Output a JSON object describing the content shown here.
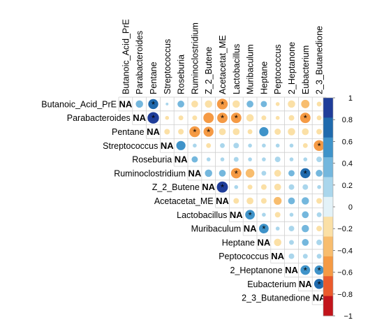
{
  "chart_data": {
    "type": "heatmap",
    "subtype": "correlation-matrix-upper-triangle-circles",
    "title": "",
    "xlabel": "",
    "ylabel": "",
    "variables": [
      "Butanoic_Acid_PrE",
      "Parabacteroides",
      "Pentane",
      "Streptococcus",
      "Roseburia",
      "Ruminoclostridium",
      "Z_2_Butene",
      "Acetacetat_ME",
      "Lactobacillus",
      "Muribaculum",
      "Heptane",
      "Peptococcus",
      "2_Heptanone",
      "Eubacterium",
      "2_3_Butanedione"
    ],
    "diagonal_label": "NA",
    "significance_marker": "*",
    "values": [
      [
        null,
        0.35,
        0.65,
        0.05,
        0.3,
        -0.3,
        -0.35,
        -0.75,
        -0.35,
        0.3,
        0.25,
        -0.1,
        -0.35,
        -0.45,
        -0.15
      ],
      [
        null,
        null,
        0.85,
        -0.1,
        -0.15,
        -0.15,
        -0.7,
        -0.7,
        -0.7,
        -0.35,
        -0.15,
        -0.1,
        -0.2,
        -0.7,
        -0.15
      ],
      [
        null,
        null,
        null,
        -0.2,
        -0.2,
        -0.75,
        -0.65,
        -0.3,
        -0.3,
        -0.15,
        0.55,
        -0.25,
        -0.35,
        -0.3,
        -0.2
      ],
      [
        null,
        null,
        null,
        null,
        0.55,
        0.1,
        -0.15,
        0.15,
        0.2,
        0.1,
        0.1,
        0.1,
        0.1,
        -0.15,
        -0.75
      ],
      [
        null,
        null,
        null,
        null,
        null,
        0.25,
        0.1,
        0.1,
        0.15,
        0.1,
        0.1,
        0.2,
        0.1,
        0.1,
        0.2
      ],
      [
        null,
        null,
        null,
        null,
        null,
        null,
        0.35,
        0.3,
        -0.7,
        -0.5,
        0.15,
        -0.3,
        0.25,
        0.65,
        0.3
      ],
      [
        null,
        null,
        null,
        null,
        null,
        null,
        null,
        0.8,
        0.1,
        -0.15,
        -0.2,
        -0.3,
        0.2,
        0.2,
        0.1
      ],
      [
        null,
        null,
        null,
        null,
        null,
        null,
        null,
        null,
        -0.2,
        -0.3,
        -0.2,
        -0.4,
        0.3,
        0.35,
        -0.2
      ],
      [
        null,
        null,
        null,
        null,
        null,
        null,
        null,
        null,
        null,
        0.6,
        0.1,
        -0.2,
        0.1,
        0.3,
        0.15
      ],
      [
        null,
        null,
        null,
        null,
        null,
        null,
        null,
        null,
        null,
        null,
        0.6,
        0.1,
        0.2,
        0.35,
        -0.2
      ],
      [
        null,
        null,
        null,
        null,
        null,
        null,
        null,
        null,
        null,
        null,
        null,
        -0.35,
        0.15,
        0.3,
        0.2
      ],
      [
        null,
        null,
        null,
        null,
        null,
        null,
        null,
        null,
        null,
        null,
        null,
        null,
        0.2,
        0.15,
        0.15
      ],
      [
        null,
        null,
        null,
        null,
        null,
        null,
        null,
        null,
        null,
        null,
        null,
        null,
        null,
        0.6,
        0.55
      ],
      [
        null,
        null,
        null,
        null,
        null,
        null,
        null,
        null,
        null,
        null,
        null,
        null,
        null,
        null,
        0.65
      ],
      [
        null,
        null,
        null,
        null,
        null,
        null,
        null,
        null,
        null,
        null,
        null,
        null,
        null,
        null,
        null
      ]
    ],
    "significant": [
      [
        0,
        2
      ],
      [
        0,
        7
      ],
      [
        1,
        2
      ],
      [
        1,
        7
      ],
      [
        1,
        8
      ],
      [
        1,
        13
      ],
      [
        2,
        5
      ],
      [
        2,
        6
      ],
      [
        3,
        14
      ],
      [
        5,
        8
      ],
      [
        5,
        13
      ],
      [
        6,
        7
      ],
      [
        8,
        9
      ],
      [
        9,
        10
      ],
      [
        12,
        13
      ],
      [
        12,
        14
      ],
      [
        13,
        14
      ]
    ],
    "colorbar": {
      "range": [
        -1,
        1
      ],
      "tick_labels": [
        "1",
        "0.8",
        "0.6",
        "0.4",
        "0.2",
        "0",
        "−0.2",
        "−0.4",
        "−0.6",
        "−0.8",
        "−1"
      ],
      "colors": [
        "#1f3d99",
        "#1f6aad",
        "#3f93c9",
        "#74b7dd",
        "#aad6ec",
        "#e3f2f8",
        "#fbe0a6",
        "#f8bd6e",
        "#f59a44",
        "#ea5a2c",
        "#c2141b"
      ]
    },
    "grid": true,
    "legend_placement": "right"
  }
}
